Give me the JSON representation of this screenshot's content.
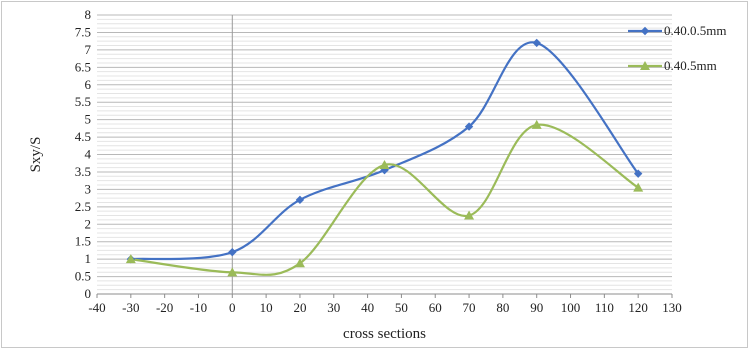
{
  "chart_data": {
    "type": "line",
    "title": "",
    "xlabel": "cross sections",
    "ylabel": "Sxy/S",
    "xlim": [
      -40,
      130
    ],
    "ylim": [
      0,
      8
    ],
    "x_ticks": [
      -40,
      -30,
      -20,
      -10,
      0,
      10,
      20,
      30,
      40,
      50,
      60,
      70,
      80,
      90,
      100,
      110,
      120,
      130
    ],
    "y_ticks": [
      "0",
      "0.5",
      "1",
      "1.5",
      "2",
      "2.5",
      "3",
      "3.5",
      "4",
      "4.5",
      "5",
      "5.5",
      "6",
      "6.5",
      "7",
      "7.5",
      "8"
    ],
    "grid": "horizontal",
    "legend_position": "right",
    "series": [
      {
        "name": "0.40.0.5mm",
        "color": "#4472c4",
        "marker": "diamond",
        "smooth": true,
        "x": [
          -30,
          0,
          20,
          45,
          70,
          90,
          120
        ],
        "y": [
          1.0,
          1.2,
          2.7,
          3.55,
          4.8,
          7.2,
          3.45
        ]
      },
      {
        "name": "0.40.5mm",
        "color": "#9bbb59",
        "marker": "triangle",
        "smooth": true,
        "x": [
          -30,
          0,
          20,
          45,
          70,
          90,
          120
        ],
        "y": [
          1.0,
          0.62,
          0.88,
          3.7,
          2.25,
          4.85,
          3.05
        ]
      }
    ]
  }
}
